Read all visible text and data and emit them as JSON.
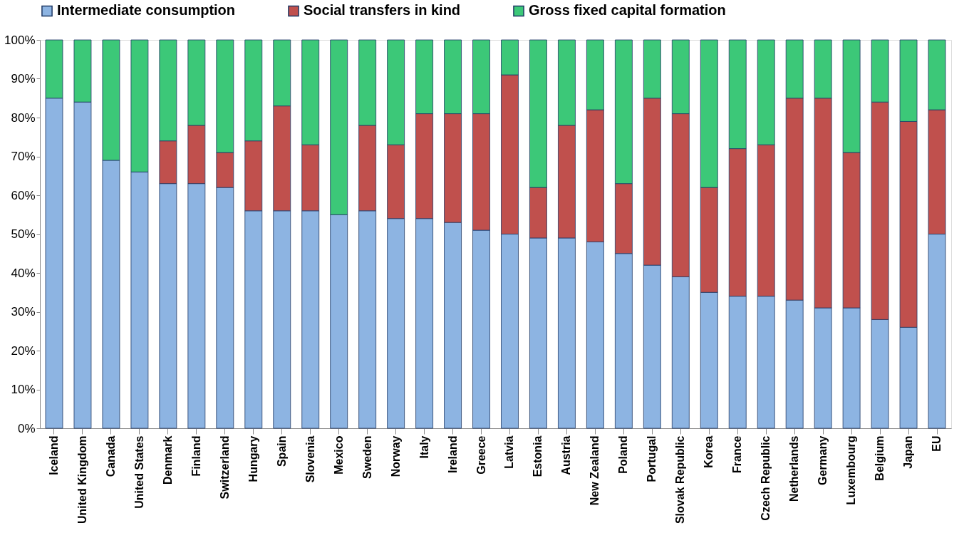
{
  "chart_data": {
    "type": "bar",
    "stacked": true,
    "legend": "top",
    "grid": false,
    "categories": [
      "Iceland",
      "United Kingdom",
      "Canada",
      "United States",
      "Denmark",
      "Finland",
      "Switzerland",
      "Hungary",
      "Spain",
      "Slovenia",
      "Mexico",
      "Sweden",
      "Norway",
      "Italy",
      "Ireland",
      "Greece",
      "Latvia",
      "Estonia",
      "Austria",
      "New Zealand",
      "Poland",
      "Portugal",
      "Slovak Republic",
      "Korea",
      "France",
      "Czech Republic",
      "Netherlands",
      "Germany",
      "Luxembourg",
      "Belgium",
      "Japan",
      "EU"
    ],
    "series": [
      {
        "name": "Intermediate consumption",
        "color": "#8db4e2",
        "values": [
          85,
          84,
          69,
          66,
          63,
          63,
          62,
          56,
          56,
          56,
          55,
          56,
          54,
          54,
          53,
          51,
          50,
          49,
          49,
          48,
          45,
          42,
          39,
          35,
          34,
          34,
          33,
          31,
          31,
          28,
          26,
          50
        ]
      },
      {
        "name": "Social transfers in kind",
        "color": "#c0504d",
        "values": [
          0,
          0,
          0,
          0,
          11,
          15,
          9,
          18,
          27,
          17,
          0,
          22,
          19,
          27,
          28,
          30,
          41,
          13,
          29,
          34,
          18,
          43,
          42,
          27,
          38,
          39,
          52,
          54,
          40,
          56,
          53,
          32
        ]
      },
      {
        "name": "Gross fixed capital formation",
        "color": "#3cc878",
        "values": [
          15,
          16,
          31,
          34,
          26,
          22,
          29,
          26,
          17,
          27,
          45,
          22,
          27,
          19,
          19,
          19,
          9,
          38,
          22,
          18,
          37,
          15,
          19,
          38,
          28,
          27,
          15,
          15,
          29,
          16,
          21,
          18
        ]
      }
    ],
    "ylim": [
      0,
      100
    ],
    "yticks": [
      {
        "value": 0,
        "label": "0%"
      },
      {
        "value": 10,
        "label": "10%"
      },
      {
        "value": 20,
        "label": "20%"
      },
      {
        "value": 30,
        "label": "30%"
      },
      {
        "value": 40,
        "label": "40%"
      },
      {
        "value": 50,
        "label": "50%"
      },
      {
        "value": 60,
        "label": "60%"
      },
      {
        "value": 70,
        "label": "70%"
      },
      {
        "value": 80,
        "label": "80%"
      },
      {
        "value": 90,
        "label": "90%"
      },
      {
        "value": 100,
        "label": "100%"
      }
    ]
  }
}
